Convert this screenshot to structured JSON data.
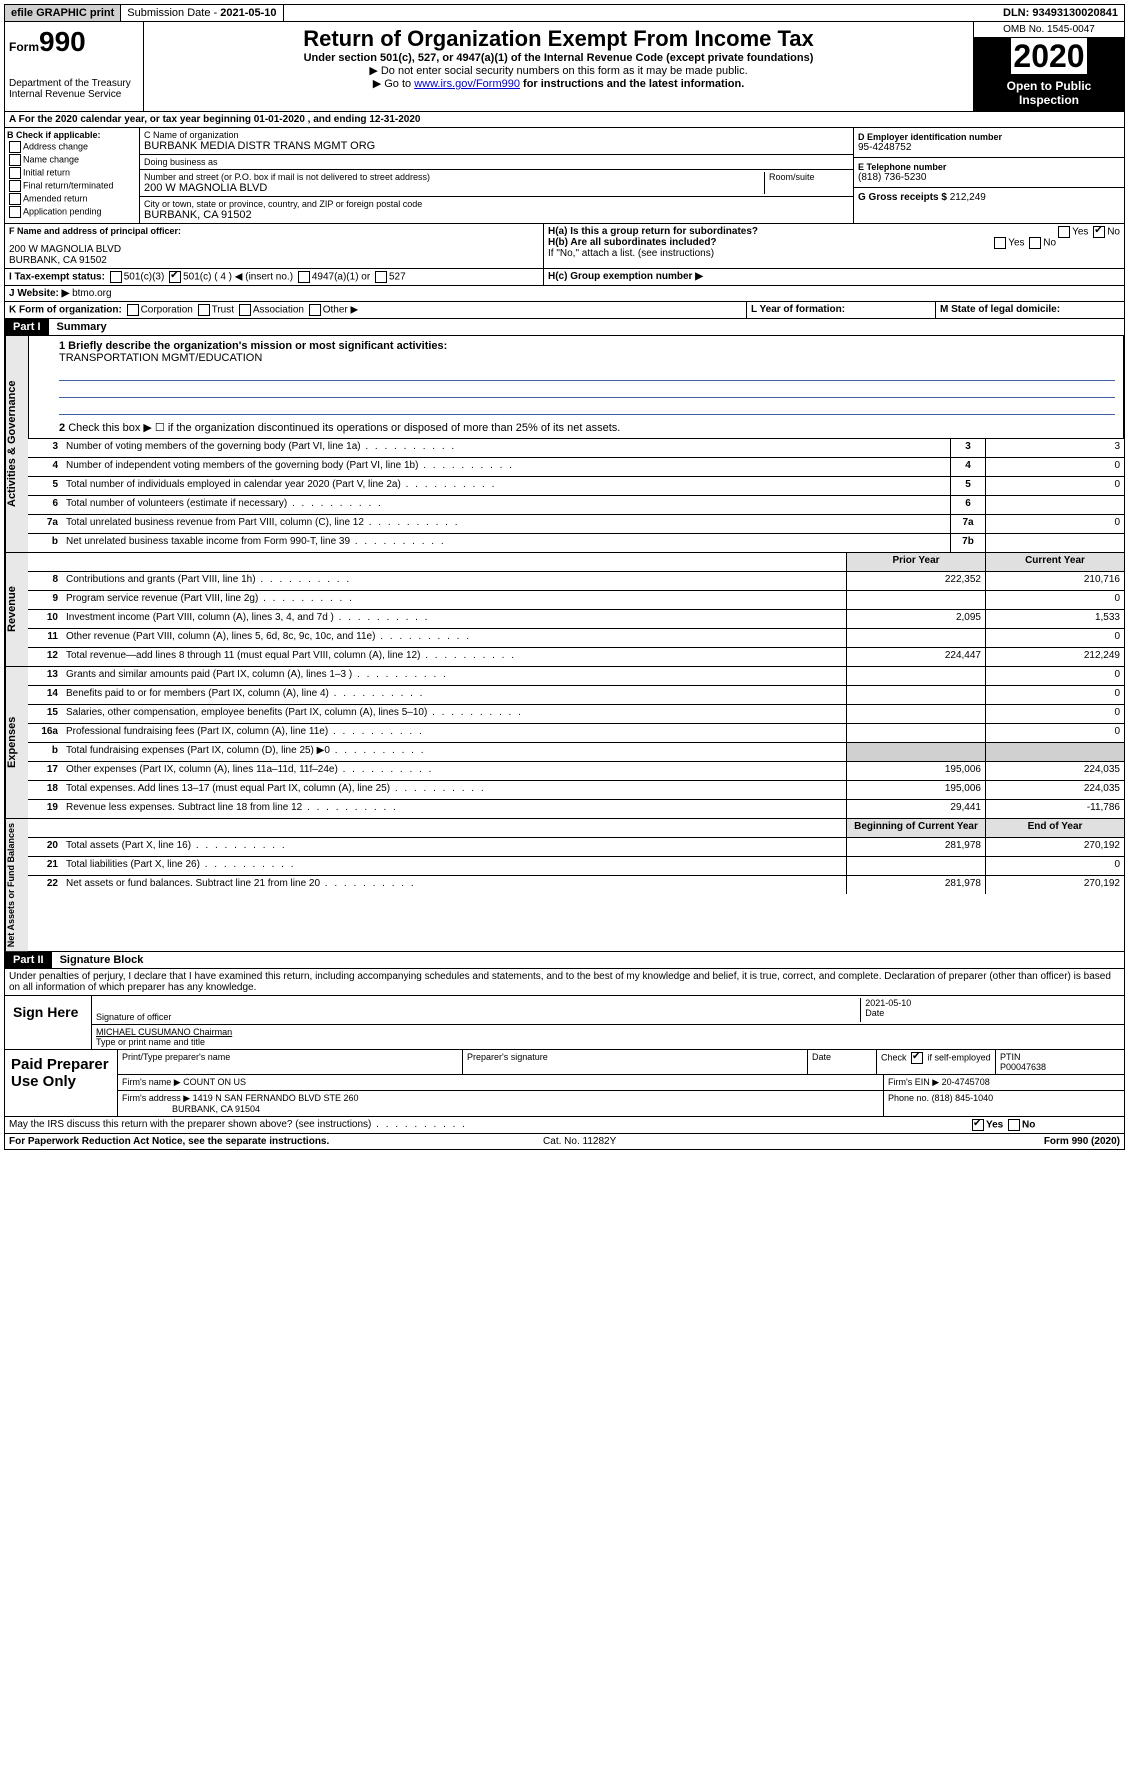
{
  "top": {
    "efile": "efile GRAPHIC print",
    "submission_label": "Submission Date - ",
    "submission_date": "2021-05-10",
    "dln_label": "DLN: ",
    "dln": "93493130020841"
  },
  "header": {
    "form_prefix": "Form",
    "form_number": "990",
    "dept": "Department of the Treasury\nInternal Revenue Service",
    "title": "Return of Organization Exempt From Income Tax",
    "subtitle": "Under section 501(c), 527, or 4947(a)(1) of the Internal Revenue Code (except private foundations)",
    "note1": "▶ Do not enter social security numbers on this form as it may be made public.",
    "note2_pre": "▶ Go to ",
    "note2_link": "www.irs.gov/Form990",
    "note2_post": " for instructions and the latest information.",
    "omb": "OMB No. 1545-0047",
    "year": "2020",
    "open": "Open to Public Inspection"
  },
  "sectionA": "A For the 2020 calendar year, or tax year beginning 01-01-2020    , and ending 12-31-2020",
  "B": {
    "label": "B Check if applicable:",
    "items": [
      "Address change",
      "Name change",
      "Initial return",
      "Final return/terminated",
      "Amended return",
      "Application pending"
    ]
  },
  "C": {
    "name_lbl": "C Name of organization",
    "name": "BURBANK MEDIA DISTR TRANS MGMT ORG",
    "dba_lbl": "Doing business as",
    "dba": "",
    "addr_lbl": "Number and street (or P.O. box if mail is not delivered to street address)",
    "room_lbl": "Room/suite",
    "addr": "200 W MAGNOLIA BLVD",
    "city_lbl": "City or town, state or province, country, and ZIP or foreign postal code",
    "city": "BURBANK, CA  91502"
  },
  "D": {
    "lbl": "D Employer identification number",
    "val": "95-4248752"
  },
  "E": {
    "lbl": "E Telephone number",
    "val": "(818) 736-5230"
  },
  "G": {
    "lbl": "G Gross receipts $ ",
    "val": "212,249"
  },
  "F": {
    "lbl": "F  Name and address of principal officer:",
    "line1": "200 W MAGNOLIA BLVD",
    "line2": "BURBANK, CA  91502"
  },
  "H": {
    "a": "H(a)  Is this a group return for subordinates?",
    "a_yes": "Yes",
    "a_no": "No",
    "b": "H(b)  Are all subordinates included?",
    "b_note": "If \"No,\" attach a list. (see instructions)",
    "c": "H(c)  Group exemption number ▶"
  },
  "I": {
    "lbl": "I    Tax-exempt status:",
    "opts": [
      "501(c)(3)",
      "501(c) ( 4 ) ◀ (insert no.)",
      "4947(a)(1) or",
      "527"
    ]
  },
  "J": {
    "lbl": "J   Website: ▶",
    "val": "btmo.org"
  },
  "K": {
    "lbl": "K Form of organization:",
    "opts": [
      "Corporation",
      "Trust",
      "Association",
      "Other ▶"
    ]
  },
  "L": {
    "lbl": "L Year of formation:",
    "val": ""
  },
  "M": {
    "lbl": "M State of legal domicile:",
    "val": ""
  },
  "partI": {
    "num": "Part I",
    "title": "Summary"
  },
  "summary": {
    "l1_lbl": "1  Briefly describe the organization's mission or most significant activities:",
    "l1_val": "TRANSPORTATION MGMT/EDUCATION",
    "l2": "Check this box ▶ ☐  if the organization discontinued its operations or disposed of more than 25% of its net assets.",
    "lines": [
      {
        "n": "3",
        "t": "Number of voting members of the governing body (Part VI, line 1a)",
        "b": "3",
        "v": "3"
      },
      {
        "n": "4",
        "t": "Number of independent voting members of the governing body (Part VI, line 1b)",
        "b": "4",
        "v": "0"
      },
      {
        "n": "5",
        "t": "Total number of individuals employed in calendar year 2020 (Part V, line 2a)",
        "b": "5",
        "v": "0"
      },
      {
        "n": "6",
        "t": "Total number of volunteers (estimate if necessary)",
        "b": "6",
        "v": ""
      },
      {
        "n": "7a",
        "t": "Total unrelated business revenue from Part VIII, column (C), line 12",
        "b": "7a",
        "v": "0"
      },
      {
        "n": "b",
        "t": "Net unrelated business taxable income from Form 990-T, line 39",
        "b": "7b",
        "v": ""
      }
    ],
    "col_prior": "Prior Year",
    "col_curr": "Current Year",
    "revenue": [
      {
        "n": "8",
        "t": "Contributions and grants (Part VIII, line 1h)",
        "p": "222,352",
        "c": "210,716"
      },
      {
        "n": "9",
        "t": "Program service revenue (Part VIII, line 2g)",
        "p": "",
        "c": "0"
      },
      {
        "n": "10",
        "t": "Investment income (Part VIII, column (A), lines 3, 4, and 7d )",
        "p": "2,095",
        "c": "1,533"
      },
      {
        "n": "11",
        "t": "Other revenue (Part VIII, column (A), lines 5, 6d, 8c, 9c, 10c, and 11e)",
        "p": "",
        "c": "0"
      },
      {
        "n": "12",
        "t": "Total revenue—add lines 8 through 11 (must equal Part VIII, column (A), line 12)",
        "p": "224,447",
        "c": "212,249"
      }
    ],
    "expenses": [
      {
        "n": "13",
        "t": "Grants and similar amounts paid (Part IX, column (A), lines 1–3 )",
        "p": "",
        "c": "0"
      },
      {
        "n": "14",
        "t": "Benefits paid to or for members (Part IX, column (A), line 4)",
        "p": "",
        "c": "0"
      },
      {
        "n": "15",
        "t": "Salaries, other compensation, employee benefits (Part IX, column (A), lines 5–10)",
        "p": "",
        "c": "0"
      },
      {
        "n": "16a",
        "t": "Professional fundraising fees (Part IX, column (A), line 11e)",
        "p": "",
        "c": "0"
      },
      {
        "n": "b",
        "t": "Total fundraising expenses (Part IX, column (D), line 25) ▶0",
        "p": "shade",
        "c": "shade"
      },
      {
        "n": "17",
        "t": "Other expenses (Part IX, column (A), lines 11a–11d, 11f–24e)",
        "p": "195,006",
        "c": "224,035"
      },
      {
        "n": "18",
        "t": "Total expenses. Add lines 13–17 (must equal Part IX, column (A), line 25)",
        "p": "195,006",
        "c": "224,035"
      },
      {
        "n": "19",
        "t": "Revenue less expenses. Subtract line 18 from line 12",
        "p": "29,441",
        "c": "-11,786"
      }
    ],
    "col_beg": "Beginning of Current Year",
    "col_end": "End of Year",
    "net": [
      {
        "n": "20",
        "t": "Total assets (Part X, line 16)",
        "p": "281,978",
        "c": "270,192"
      },
      {
        "n": "21",
        "t": "Total liabilities (Part X, line 26)",
        "p": "",
        "c": "0"
      },
      {
        "n": "22",
        "t": "Net assets or fund balances. Subtract line 21 from line 20",
        "p": "281,978",
        "c": "270,192"
      }
    ],
    "vt_gov": "Activities & Governance",
    "vt_rev": "Revenue",
    "vt_exp": "Expenses",
    "vt_net": "Net Assets or Fund Balances"
  },
  "partII": {
    "num": "Part II",
    "title": "Signature Block"
  },
  "sig": {
    "penalty": "Under penalties of perjury, I declare that I have examined this return, including accompanying schedules and statements, and to the best of my knowledge and belief, it is true, correct, and complete. Declaration of preparer (other than officer) is based on all information of which preparer has any knowledge.",
    "sign_here": "Sign Here",
    "sig_officer": "Signature of officer",
    "date_lbl": "Date",
    "date": "2021-05-10",
    "name": "MICHAEL CUSUMANO  Chairman",
    "name_lbl": "Type or print name and title"
  },
  "paid": {
    "label": "Paid Preparer Use Only",
    "h1": "Print/Type preparer's name",
    "h2": "Preparer's signature",
    "h3": "Date",
    "h4_a": "Check",
    "h4_b": "if self-employed",
    "h5": "PTIN",
    "ptin": "P00047638",
    "firm_lbl": "Firm's name    ▶",
    "firm": "COUNT ON US",
    "ein_lbl": "Firm's EIN ▶",
    "ein": "20-4745708",
    "addr_lbl": "Firm's address ▶",
    "addr1": "1419 N SAN FERNANDO BLVD STE 260",
    "addr2": "BURBANK, CA  91504",
    "phone_lbl": "Phone no.",
    "phone": "(818) 845-1040"
  },
  "discuss": "May the IRS discuss this return with the preparer shown above? (see instructions)",
  "discuss_yes": "Yes",
  "discuss_no": "No",
  "footer": {
    "pra": "For Paperwork Reduction Act Notice, see the separate instructions.",
    "cat": "Cat. No. 11282Y",
    "form": "Form 990 (2020)"
  }
}
